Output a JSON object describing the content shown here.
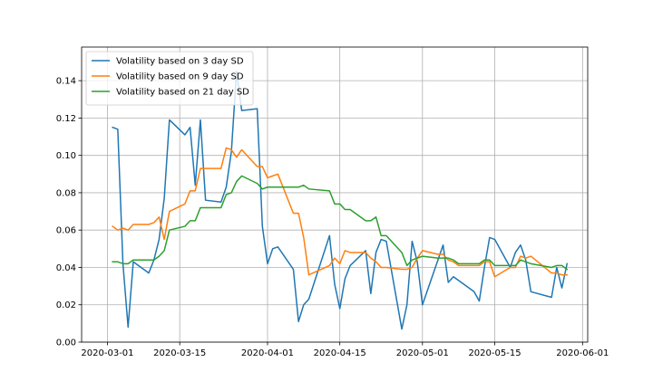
{
  "chart_data": {
    "type": "line",
    "title": "",
    "xlabel": "",
    "ylabel": "",
    "x_type": "date",
    "xlim": [
      "2020-02-25",
      "2020-06-02"
    ],
    "ylim": [
      0,
      0.158
    ],
    "x_ticks": [
      "2020-03-01",
      "2020-03-15",
      "2020-04-01",
      "2020-04-15",
      "2020-05-01",
      "2020-05-15",
      "2020-06-01"
    ],
    "y_ticks": [
      0.0,
      0.02,
      0.04,
      0.06,
      0.08,
      0.1,
      0.12,
      0.14
    ],
    "y_tick_labels": [
      "0.00",
      "0.02",
      "0.04",
      "0.06",
      "0.08",
      "0.10",
      "0.12",
      "0.14"
    ],
    "grid": true,
    "legend_position": "top-left",
    "series": [
      {
        "name": "Volatility based on 3 day SD",
        "color": "#1f77b4",
        "points": [
          [
            "2020-03-02",
            0.115
          ],
          [
            "2020-03-03",
            0.114
          ],
          [
            "2020-03-04",
            0.042
          ],
          [
            "2020-03-05",
            0.008
          ],
          [
            "2020-03-06",
            0.043
          ],
          [
            "2020-03-09",
            0.037
          ],
          [
            "2020-03-10",
            0.044
          ],
          [
            "2020-03-11",
            0.055
          ],
          [
            "2020-03-12",
            0.077
          ],
          [
            "2020-03-13",
            0.119
          ],
          [
            "2020-03-16",
            0.111
          ],
          [
            "2020-03-17",
            0.115
          ],
          [
            "2020-03-18",
            0.084
          ],
          [
            "2020-03-19",
            0.119
          ],
          [
            "2020-03-20",
            0.076
          ],
          [
            "2020-03-23",
            0.075
          ],
          [
            "2020-03-24",
            0.083
          ],
          [
            "2020-03-25",
            0.102
          ],
          [
            "2020-03-26",
            0.145
          ],
          [
            "2020-03-27",
            0.124
          ],
          [
            "2020-03-30",
            0.125
          ],
          [
            "2020-03-31",
            0.062
          ],
          [
            "2020-04-01",
            0.042
          ],
          [
            "2020-04-02",
            0.05
          ],
          [
            "2020-04-03",
            0.051
          ],
          [
            "2020-04-06",
            0.039
          ],
          [
            "2020-04-07",
            0.011
          ],
          [
            "2020-04-08",
            0.02
          ],
          [
            "2020-04-09",
            0.023
          ],
          [
            "2020-04-13",
            0.057
          ],
          [
            "2020-04-14",
            0.031
          ],
          [
            "2020-04-15",
            0.018
          ],
          [
            "2020-04-16",
            0.034
          ],
          [
            "2020-04-17",
            0.041
          ],
          [
            "2020-04-20",
            0.049
          ],
          [
            "2020-04-21",
            0.026
          ],
          [
            "2020-04-22",
            0.048
          ],
          [
            "2020-04-23",
            0.055
          ],
          [
            "2020-04-24",
            0.054
          ],
          [
            "2020-04-27",
            0.007
          ],
          [
            "2020-04-28",
            0.02
          ],
          [
            "2020-04-29",
            0.054
          ],
          [
            "2020-04-30",
            0.043
          ],
          [
            "2020-05-01",
            0.02
          ],
          [
            "2020-05-04",
            0.044
          ],
          [
            "2020-05-05",
            0.052
          ],
          [
            "2020-05-06",
            0.032
          ],
          [
            "2020-05-07",
            0.035
          ],
          [
            "2020-05-08",
            0.033
          ],
          [
            "2020-05-11",
            0.027
          ],
          [
            "2020-05-12",
            0.022
          ],
          [
            "2020-05-13",
            0.04
          ],
          [
            "2020-05-14",
            0.056
          ],
          [
            "2020-05-15",
            0.055
          ],
          [
            "2020-05-18",
            0.04
          ],
          [
            "2020-05-19",
            0.048
          ],
          [
            "2020-05-20",
            0.052
          ],
          [
            "2020-05-21",
            0.044
          ],
          [
            "2020-05-22",
            0.027
          ],
          [
            "2020-05-26",
            0.024
          ],
          [
            "2020-05-27",
            0.04
          ],
          [
            "2020-05-28",
            0.029
          ],
          [
            "2020-05-29",
            0.042
          ]
        ]
      },
      {
        "name": "Volatility based on 9 day SD",
        "color": "#ff7f0e",
        "points": [
          [
            "2020-03-02",
            0.062
          ],
          [
            "2020-03-03",
            0.06
          ],
          [
            "2020-03-04",
            0.061
          ],
          [
            "2020-03-05",
            0.06
          ],
          [
            "2020-03-06",
            0.063
          ],
          [
            "2020-03-09",
            0.063
          ],
          [
            "2020-03-10",
            0.064
          ],
          [
            "2020-03-11",
            0.067
          ],
          [
            "2020-03-12",
            0.055
          ],
          [
            "2020-03-13",
            0.07
          ],
          [
            "2020-03-16",
            0.074
          ],
          [
            "2020-03-17",
            0.081
          ],
          [
            "2020-03-18",
            0.081
          ],
          [
            "2020-03-19",
            0.093
          ],
          [
            "2020-03-20",
            0.093
          ],
          [
            "2020-03-23",
            0.093
          ],
          [
            "2020-03-24",
            0.104
          ],
          [
            "2020-03-25",
            0.103
          ],
          [
            "2020-03-26",
            0.099
          ],
          [
            "2020-03-27",
            0.103
          ],
          [
            "2020-03-30",
            0.094
          ],
          [
            "2020-03-31",
            0.094
          ],
          [
            "2020-04-01",
            0.088
          ],
          [
            "2020-04-02",
            0.089
          ],
          [
            "2020-04-03",
            0.09
          ],
          [
            "2020-04-06",
            0.069
          ],
          [
            "2020-04-07",
            0.069
          ],
          [
            "2020-04-08",
            0.056
          ],
          [
            "2020-04-09",
            0.036
          ],
          [
            "2020-04-13",
            0.041
          ],
          [
            "2020-04-14",
            0.045
          ],
          [
            "2020-04-15",
            0.042
          ],
          [
            "2020-04-16",
            0.049
          ],
          [
            "2020-04-17",
            0.048
          ],
          [
            "2020-04-20",
            0.048
          ],
          [
            "2020-04-21",
            0.045
          ],
          [
            "2020-04-22",
            0.043
          ],
          [
            "2020-04-23",
            0.04
          ],
          [
            "2020-04-24",
            0.04
          ],
          [
            "2020-04-27",
            0.039
          ],
          [
            "2020-04-28",
            0.039
          ],
          [
            "2020-04-29",
            0.04
          ],
          [
            "2020-04-30",
            0.045
          ],
          [
            "2020-05-01",
            0.049
          ],
          [
            "2020-05-04",
            0.047
          ],
          [
            "2020-05-05",
            0.047
          ],
          [
            "2020-05-06",
            0.044
          ],
          [
            "2020-05-07",
            0.043
          ],
          [
            "2020-05-08",
            0.041
          ],
          [
            "2020-05-11",
            0.041
          ],
          [
            "2020-05-12",
            0.041
          ],
          [
            "2020-05-13",
            0.043
          ],
          [
            "2020-05-14",
            0.043
          ],
          [
            "2020-05-15",
            0.035
          ],
          [
            "2020-05-18",
            0.04
          ],
          [
            "2020-05-19",
            0.04
          ],
          [
            "2020-05-20",
            0.046
          ],
          [
            "2020-05-21",
            0.045
          ],
          [
            "2020-05-22",
            0.046
          ],
          [
            "2020-05-26",
            0.037
          ],
          [
            "2020-05-27",
            0.037
          ],
          [
            "2020-05-28",
            0.036
          ],
          [
            "2020-05-29",
            0.036
          ]
        ]
      },
      {
        "name": "Volatility based on 21 day SD",
        "color": "#2ca02c",
        "points": [
          [
            "2020-03-02",
            0.043
          ],
          [
            "2020-03-03",
            0.043
          ],
          [
            "2020-03-04",
            0.042
          ],
          [
            "2020-03-05",
            0.042
          ],
          [
            "2020-03-06",
            0.044
          ],
          [
            "2020-03-09",
            0.044
          ],
          [
            "2020-03-10",
            0.044
          ],
          [
            "2020-03-11",
            0.046
          ],
          [
            "2020-03-12",
            0.049
          ],
          [
            "2020-03-13",
            0.06
          ],
          [
            "2020-03-16",
            0.062
          ],
          [
            "2020-03-17",
            0.065
          ],
          [
            "2020-03-18",
            0.065
          ],
          [
            "2020-03-19",
            0.072
          ],
          [
            "2020-03-20",
            0.072
          ],
          [
            "2020-03-23",
            0.072
          ],
          [
            "2020-03-24",
            0.079
          ],
          [
            "2020-03-25",
            0.08
          ],
          [
            "2020-03-26",
            0.086
          ],
          [
            "2020-03-27",
            0.089
          ],
          [
            "2020-03-30",
            0.085
          ],
          [
            "2020-03-31",
            0.082
          ],
          [
            "2020-04-01",
            0.083
          ],
          [
            "2020-04-02",
            0.083
          ],
          [
            "2020-04-03",
            0.083
          ],
          [
            "2020-04-06",
            0.083
          ],
          [
            "2020-04-07",
            0.083
          ],
          [
            "2020-04-08",
            0.084
          ],
          [
            "2020-04-09",
            0.082
          ],
          [
            "2020-04-13",
            0.081
          ],
          [
            "2020-04-14",
            0.074
          ],
          [
            "2020-04-15",
            0.074
          ],
          [
            "2020-04-16",
            0.071
          ],
          [
            "2020-04-17",
            0.071
          ],
          [
            "2020-04-20",
            0.065
          ],
          [
            "2020-04-21",
            0.065
          ],
          [
            "2020-04-22",
            0.067
          ],
          [
            "2020-04-23",
            0.057
          ],
          [
            "2020-04-24",
            0.057
          ],
          [
            "2020-04-27",
            0.048
          ],
          [
            "2020-04-28",
            0.041
          ],
          [
            "2020-04-29",
            0.044
          ],
          [
            "2020-04-30",
            0.045
          ],
          [
            "2020-05-01",
            0.046
          ],
          [
            "2020-05-04",
            0.045
          ],
          [
            "2020-05-05",
            0.045
          ],
          [
            "2020-05-06",
            0.045
          ],
          [
            "2020-05-07",
            0.044
          ],
          [
            "2020-05-08",
            0.042
          ],
          [
            "2020-05-11",
            0.042
          ],
          [
            "2020-05-12",
            0.042
          ],
          [
            "2020-05-13",
            0.044
          ],
          [
            "2020-05-14",
            0.044
          ],
          [
            "2020-05-15",
            0.041
          ],
          [
            "2020-05-18",
            0.041
          ],
          [
            "2020-05-19",
            0.041
          ],
          [
            "2020-05-20",
            0.044
          ],
          [
            "2020-05-21",
            0.043
          ],
          [
            "2020-05-22",
            0.042
          ],
          [
            "2020-05-26",
            0.04
          ],
          [
            "2020-05-27",
            0.041
          ],
          [
            "2020-05-28",
            0.041
          ],
          [
            "2020-05-29",
            0.039
          ]
        ]
      }
    ]
  }
}
